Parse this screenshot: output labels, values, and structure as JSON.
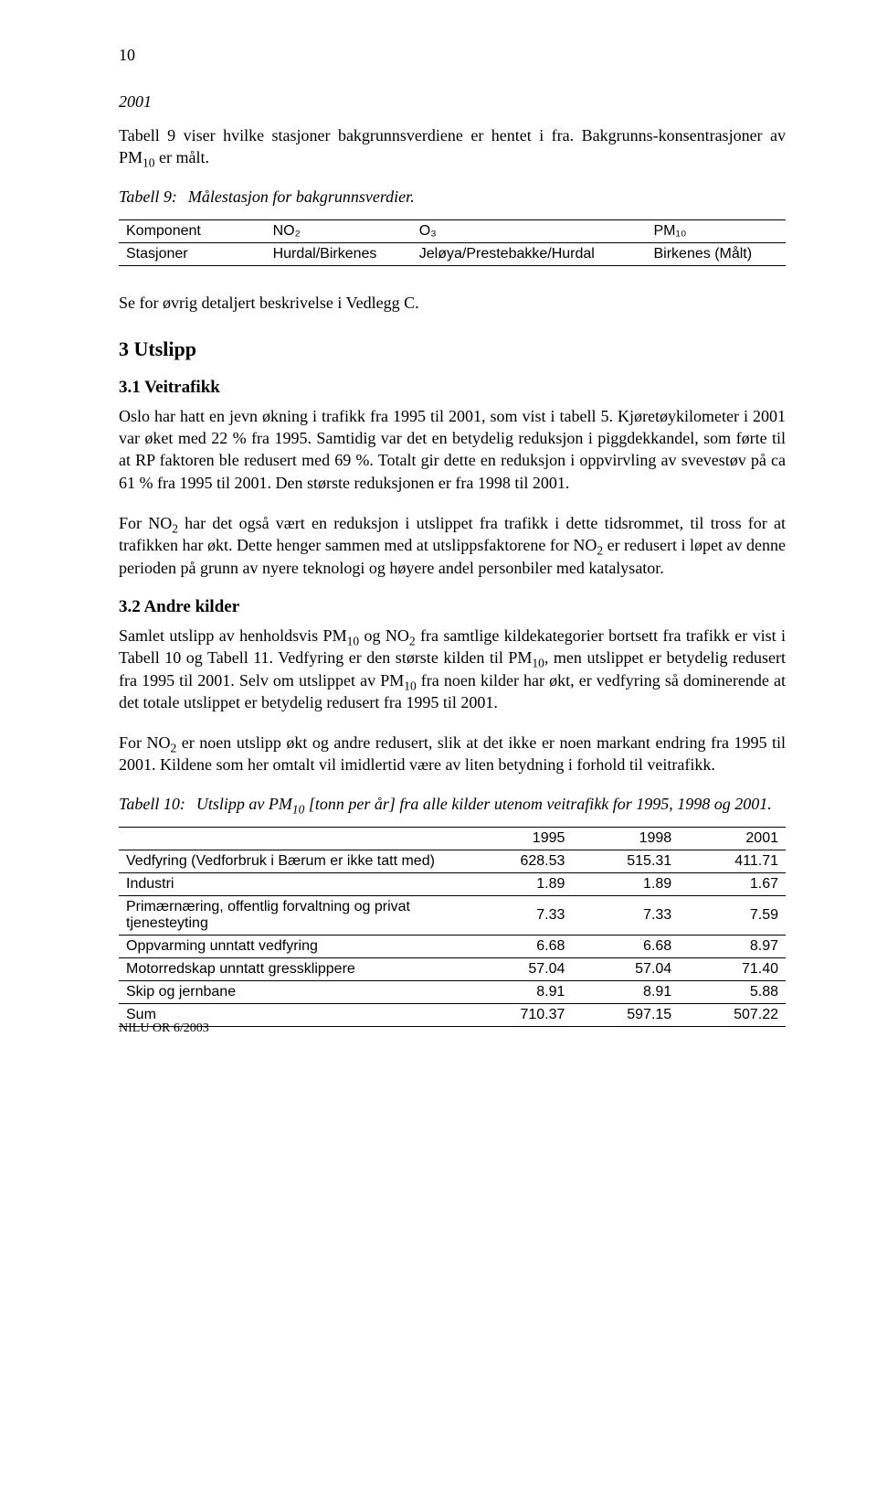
{
  "pageNumber": "10",
  "intro": {
    "yearItalic": "2001",
    "para1_a": "Tabell 9 viser hvilke stasjoner bakgrunnsverdiene er hentet i fra. Bakgrunns-konsentrasjoner av PM",
    "para1_sub": "10",
    "para1_b": " er målt."
  },
  "table9": {
    "captionLabel": "Tabell 9:",
    "captionText": "Målestasjon for bakgrunnsverdier.",
    "headers": [
      "Komponent",
      "NO₂",
      "O₃",
      "PM₁₀"
    ],
    "row": [
      "Stasjoner",
      "Hurdal/Birkenes",
      "Jeløya/Prestebakke/Hurdal",
      "Birkenes (Målt)"
    ]
  },
  "postTable9": "Se for øvrig detaljert beskrivelse i Vedlegg C.",
  "sec3": {
    "heading": "3   Utslipp",
    "sub1_heading": "3.1   Veitrafikk",
    "sub1_p1": "Oslo har hatt en jevn økning i trafikk fra 1995 til 2001, som vist i tabell 5. Kjøretøykilometer i 2001 var øket med 22 % fra 1995. Samtidig var det en betydelig reduksjon i piggdekkandel, som førte til at RP faktoren ble redusert med 69 %. Totalt gir dette en reduksjon i oppvirvling av svevestøv på ca 61 % fra 1995 til 2001. Den største reduksjonen er fra 1998 til 2001.",
    "sub1_p2_a": "For NO",
    "sub1_p2_sub": "2",
    "sub1_p2_b": " har det også vært en reduksjon i utslippet fra trafikk i dette tidsrommet, til tross for at trafikken har økt. Dette henger sammen med at utslippsfaktorene for NO",
    "sub1_p2_sub2": "2",
    "sub1_p2_c": " er redusert i løpet av denne perioden på grunn av nyere teknologi og høyere andel personbiler med katalysator.",
    "sub2_heading": "3.2   Andre kilder",
    "sub2_p1_a": "Samlet utslipp av henholdsvis PM",
    "sub2_p1_s1": "10",
    "sub2_p1_b": " og NO",
    "sub2_p1_s2": "2",
    "sub2_p1_c": " fra samtlige kildekategorier bortsett fra trafikk er vist i Tabell 10 og Tabell 11. Vedfyring er den største kilden til PM",
    "sub2_p1_s3": "10",
    "sub2_p1_d": ", men utslippet er betydelig redusert fra 1995 til 2001. Selv om utslippet av PM",
    "sub2_p1_s4": "10",
    "sub2_p1_e": " fra noen kilder har økt, er vedfyring så dominerende at det totale utslippet er betydelig redusert fra 1995 til 2001.",
    "sub2_p2_a": "For NO",
    "sub2_p2_s1": "2",
    "sub2_p2_b": " er noen utslipp økt og andre redusert, slik at det ikke er noen markant endring fra 1995 til 2001. Kildene som her omtalt vil imidlertid være av liten betydning i forhold til veitrafikk."
  },
  "table10": {
    "captionLabel": "Tabell 10:",
    "captionText_a": "Utslipp av PM",
    "captionText_sub": "10",
    "captionText_b": " [tonn per år] fra alle kilder utenom veitrafikk for 1995, 1998 og 2001.",
    "columns": [
      "",
      "1995",
      "1998",
      "2001"
    ],
    "rows": [
      [
        "Vedfyring (Vedforbruk i Bærum er ikke tatt med)",
        "628.53",
        "515.31",
        "411.71"
      ],
      [
        "Industri",
        "1.89",
        "1.89",
        "1.67"
      ],
      [
        "Primærnæring, offentlig forvaltning og privat tjenesteyting",
        "7.33",
        "7.33",
        "7.59"
      ],
      [
        "Oppvarming unntatt vedfyring",
        "6.68",
        "6.68",
        "8.97"
      ],
      [
        "Motorredskap unntatt gressklippere",
        "57.04",
        "57.04",
        "71.40"
      ],
      [
        "Skip og jernbane",
        "8.91",
        "8.91",
        "5.88"
      ]
    ],
    "sumRow": [
      "Sum",
      "710.37",
      "597.15",
      "507.22"
    ]
  },
  "footer": "NILU OR  6/2003"
}
